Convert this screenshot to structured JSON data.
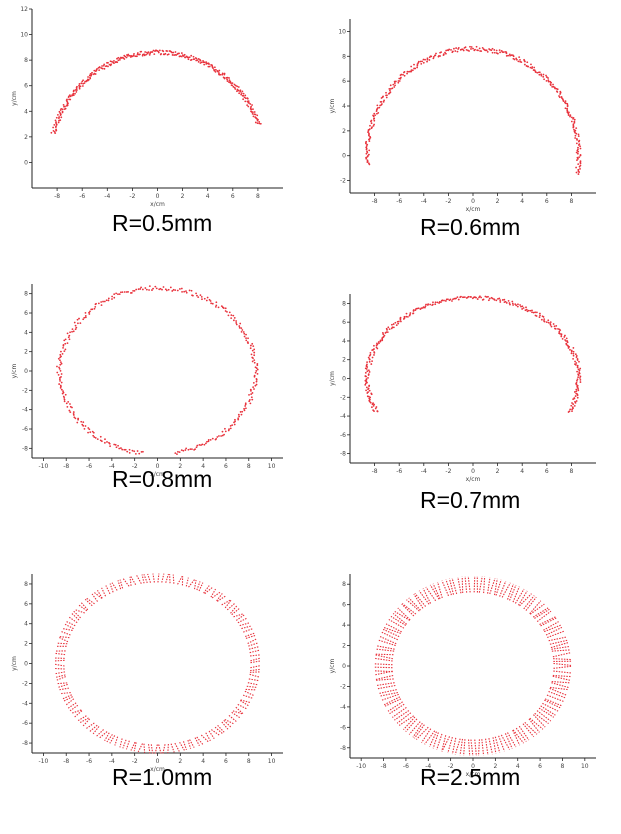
{
  "chart_data": [
    {
      "type": "scatter",
      "caption": "R=0.5mm",
      "xlabel": "x/cm",
      "ylabel": "y/cm",
      "xlim": [
        -10,
        10
      ],
      "ylim": [
        -2,
        12
      ],
      "xticks": [
        -8,
        -6,
        -4,
        -2,
        0,
        2,
        4,
        6,
        8
      ],
      "yticks": [
        0,
        2,
        4,
        6,
        8,
        10,
        12
      ],
      "arc": {
        "center": [
          0,
          0
        ],
        "radius": 8.6,
        "start_deg": 20,
        "end_deg": 165
      },
      "band_width": 0.35,
      "marker_color": "#e8323c",
      "marker": "dot"
    },
    {
      "type": "scatter",
      "caption": "R=0.6mm",
      "xlabel": "x/cm",
      "ylabel": "y/cm",
      "xlim": [
        -10,
        10
      ],
      "ylim": [
        -3,
        11
      ],
      "xticks": [
        -8,
        -6,
        -4,
        -2,
        0,
        2,
        4,
        6,
        8
      ],
      "yticks": [
        -2,
        0,
        2,
        4,
        6,
        8,
        10
      ],
      "arc": {
        "center": [
          0,
          0
        ],
        "radius": 8.6,
        "start_deg": -10,
        "end_deg": 185
      },
      "band_width": 0.35,
      "marker_color": "#e8323c",
      "marker": "dot"
    },
    {
      "type": "scatter",
      "caption": "R=0.8mm",
      "xlabel": "x/cm",
      "ylabel": "y/cm",
      "xlim": [
        -11,
        11
      ],
      "ylim": [
        -9,
        9
      ],
      "xticks": [
        -10,
        -8,
        -6,
        -4,
        -2,
        0,
        2,
        4,
        6,
        8,
        10
      ],
      "yticks": [
        -8,
        -6,
        -4,
        -2,
        0,
        2,
        4,
        6,
        8
      ],
      "arc": {
        "center": [
          0,
          0
        ],
        "radius": 8.6,
        "start_deg": -80,
        "end_deg": 262
      },
      "band_width": 0.45,
      "marker_color": "#e8323c",
      "marker": "dot"
    },
    {
      "type": "scatter",
      "caption": "R=0.7mm",
      "xlabel": "x/cm",
      "ylabel": "y/cm",
      "xlim": [
        -10,
        10
      ],
      "ylim": [
        -9,
        9
      ],
      "xticks": [
        -8,
        -6,
        -4,
        -2,
        0,
        2,
        4,
        6,
        8
      ],
      "yticks": [
        -8,
        -6,
        -4,
        -2,
        0,
        2,
        4,
        6,
        8
      ],
      "arc": {
        "center": [
          0,
          0
        ],
        "radius": 8.6,
        "start_deg": -25,
        "end_deg": 205
      },
      "band_width": 0.4,
      "marker_color": "#e8323c",
      "marker": "dot"
    },
    {
      "type": "scatter",
      "caption": "R=1.0mm",
      "xlabel": "x/cm",
      "ylabel": "y/cm",
      "xlim": [
        -11,
        11
      ],
      "ylim": [
        -9,
        9
      ],
      "xticks": [
        -10,
        -8,
        -6,
        -4,
        -2,
        0,
        2,
        4,
        6,
        8,
        10
      ],
      "yticks": [
        -8,
        -6,
        -4,
        -2,
        0,
        2,
        4,
        6,
        8
      ],
      "arc": {
        "center": [
          0,
          0
        ],
        "radius": 8.6,
        "start_deg": 0,
        "end_deg": 360
      },
      "band_width": 0.9,
      "marker_color": "#e8323c",
      "marker": "dash"
    },
    {
      "type": "scatter",
      "caption": "R=2.5mm",
      "xlabel": "x/cm",
      "ylabel": "y/cm",
      "xlim": [
        -11,
        11
      ],
      "ylim": [
        -9,
        9
      ],
      "xticks": [
        -10,
        -8,
        -6,
        -4,
        -2,
        0,
        2,
        4,
        6,
        8,
        10
      ],
      "yticks": [
        -8,
        -6,
        -4,
        -2,
        0,
        2,
        4,
        6,
        8
      ],
      "arc": {
        "center": [
          0,
          0
        ],
        "radius": 8.0,
        "start_deg": 0,
        "end_deg": 360
      },
      "band_width": 1.6,
      "marker_color": "#e8323c",
      "marker": "dash"
    }
  ]
}
